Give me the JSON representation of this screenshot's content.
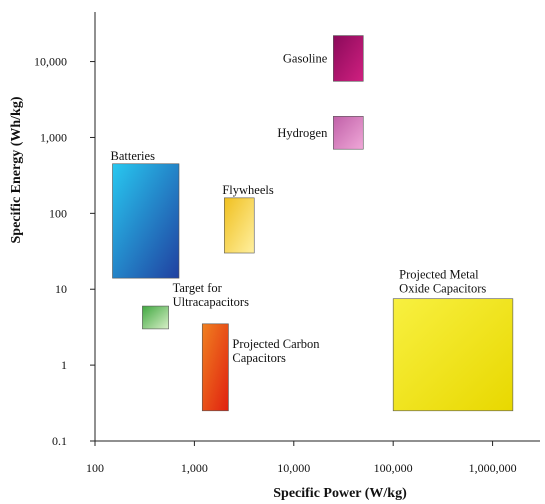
{
  "chart_data": {
    "type": "ragone",
    "title": "",
    "xlabel": "Specific Power (W/kg)",
    "ylabel": "Specific Energy (Wh/kg)",
    "xscale": "log",
    "yscale": "log",
    "xlim": [
      100,
      3000000
    ],
    "ylim": [
      0.1,
      45000
    ],
    "grid": false,
    "legend": "none",
    "x_ticks": [
      100,
      1000,
      10000,
      100000,
      1000000
    ],
    "x_tick_labels": [
      "100",
      "1,000",
      "10,000",
      "100,000",
      "1,000,000"
    ],
    "y_ticks": [
      0.1,
      1,
      10,
      100,
      1000,
      10000
    ],
    "y_tick_labels": [
      "0.1",
      "1",
      "10",
      "100",
      "1,000",
      "10,000"
    ],
    "regions": [
      {
        "name": "Gasoline",
        "label": "Gasoline",
        "x": [
          25000,
          50000
        ],
        "y": [
          5500,
          22000
        ],
        "colors": [
          "#8a0a5a",
          "#d02080"
        ],
        "label_anchor": "left"
      },
      {
        "name": "Hydrogen",
        "label": "Hydrogen",
        "x": [
          25000,
          50000
        ],
        "y": [
          700,
          1900
        ],
        "colors": [
          "#c060a8",
          "#f0a8d8"
        ],
        "label_anchor": "left"
      },
      {
        "name": "Batteries",
        "label": "Batteries",
        "x": [
          150,
          700
        ],
        "y": [
          14,
          450
        ],
        "colors": [
          "#28c8f0",
          "#2040a0"
        ],
        "label_anchor": "top"
      },
      {
        "name": "Flywheels",
        "label": "Flywheels",
        "x": [
          2000,
          4000
        ],
        "y": [
          30,
          160
        ],
        "colors": [
          "#f0c020",
          "#fff0a0"
        ],
        "label_anchor": "top"
      },
      {
        "name": "Target for Ultracapacitors",
        "label": "Target for Ultracapacitors",
        "x": [
          300,
          550
        ],
        "y": [
          3,
          6
        ],
        "colors": [
          "#40a840",
          "#d8f0c8"
        ],
        "label_anchor": "right"
      },
      {
        "name": "Projected Carbon Capacitors",
        "label": "Projected Carbon Capacitors",
        "x": [
          1200,
          2200
        ],
        "y": [
          0.25,
          3.5
        ],
        "colors": [
          "#f08020",
          "#e02010"
        ],
        "label_anchor": "right"
      },
      {
        "name": "Projected Metal Oxide Capacitors",
        "label": "Projected Metal Oxide Capacitors",
        "x": [
          100000,
          1600000
        ],
        "y": [
          0.25,
          7.5
        ],
        "colors": [
          "#f8f040",
          "#e8d800"
        ],
        "label_anchor": "top"
      }
    ]
  }
}
